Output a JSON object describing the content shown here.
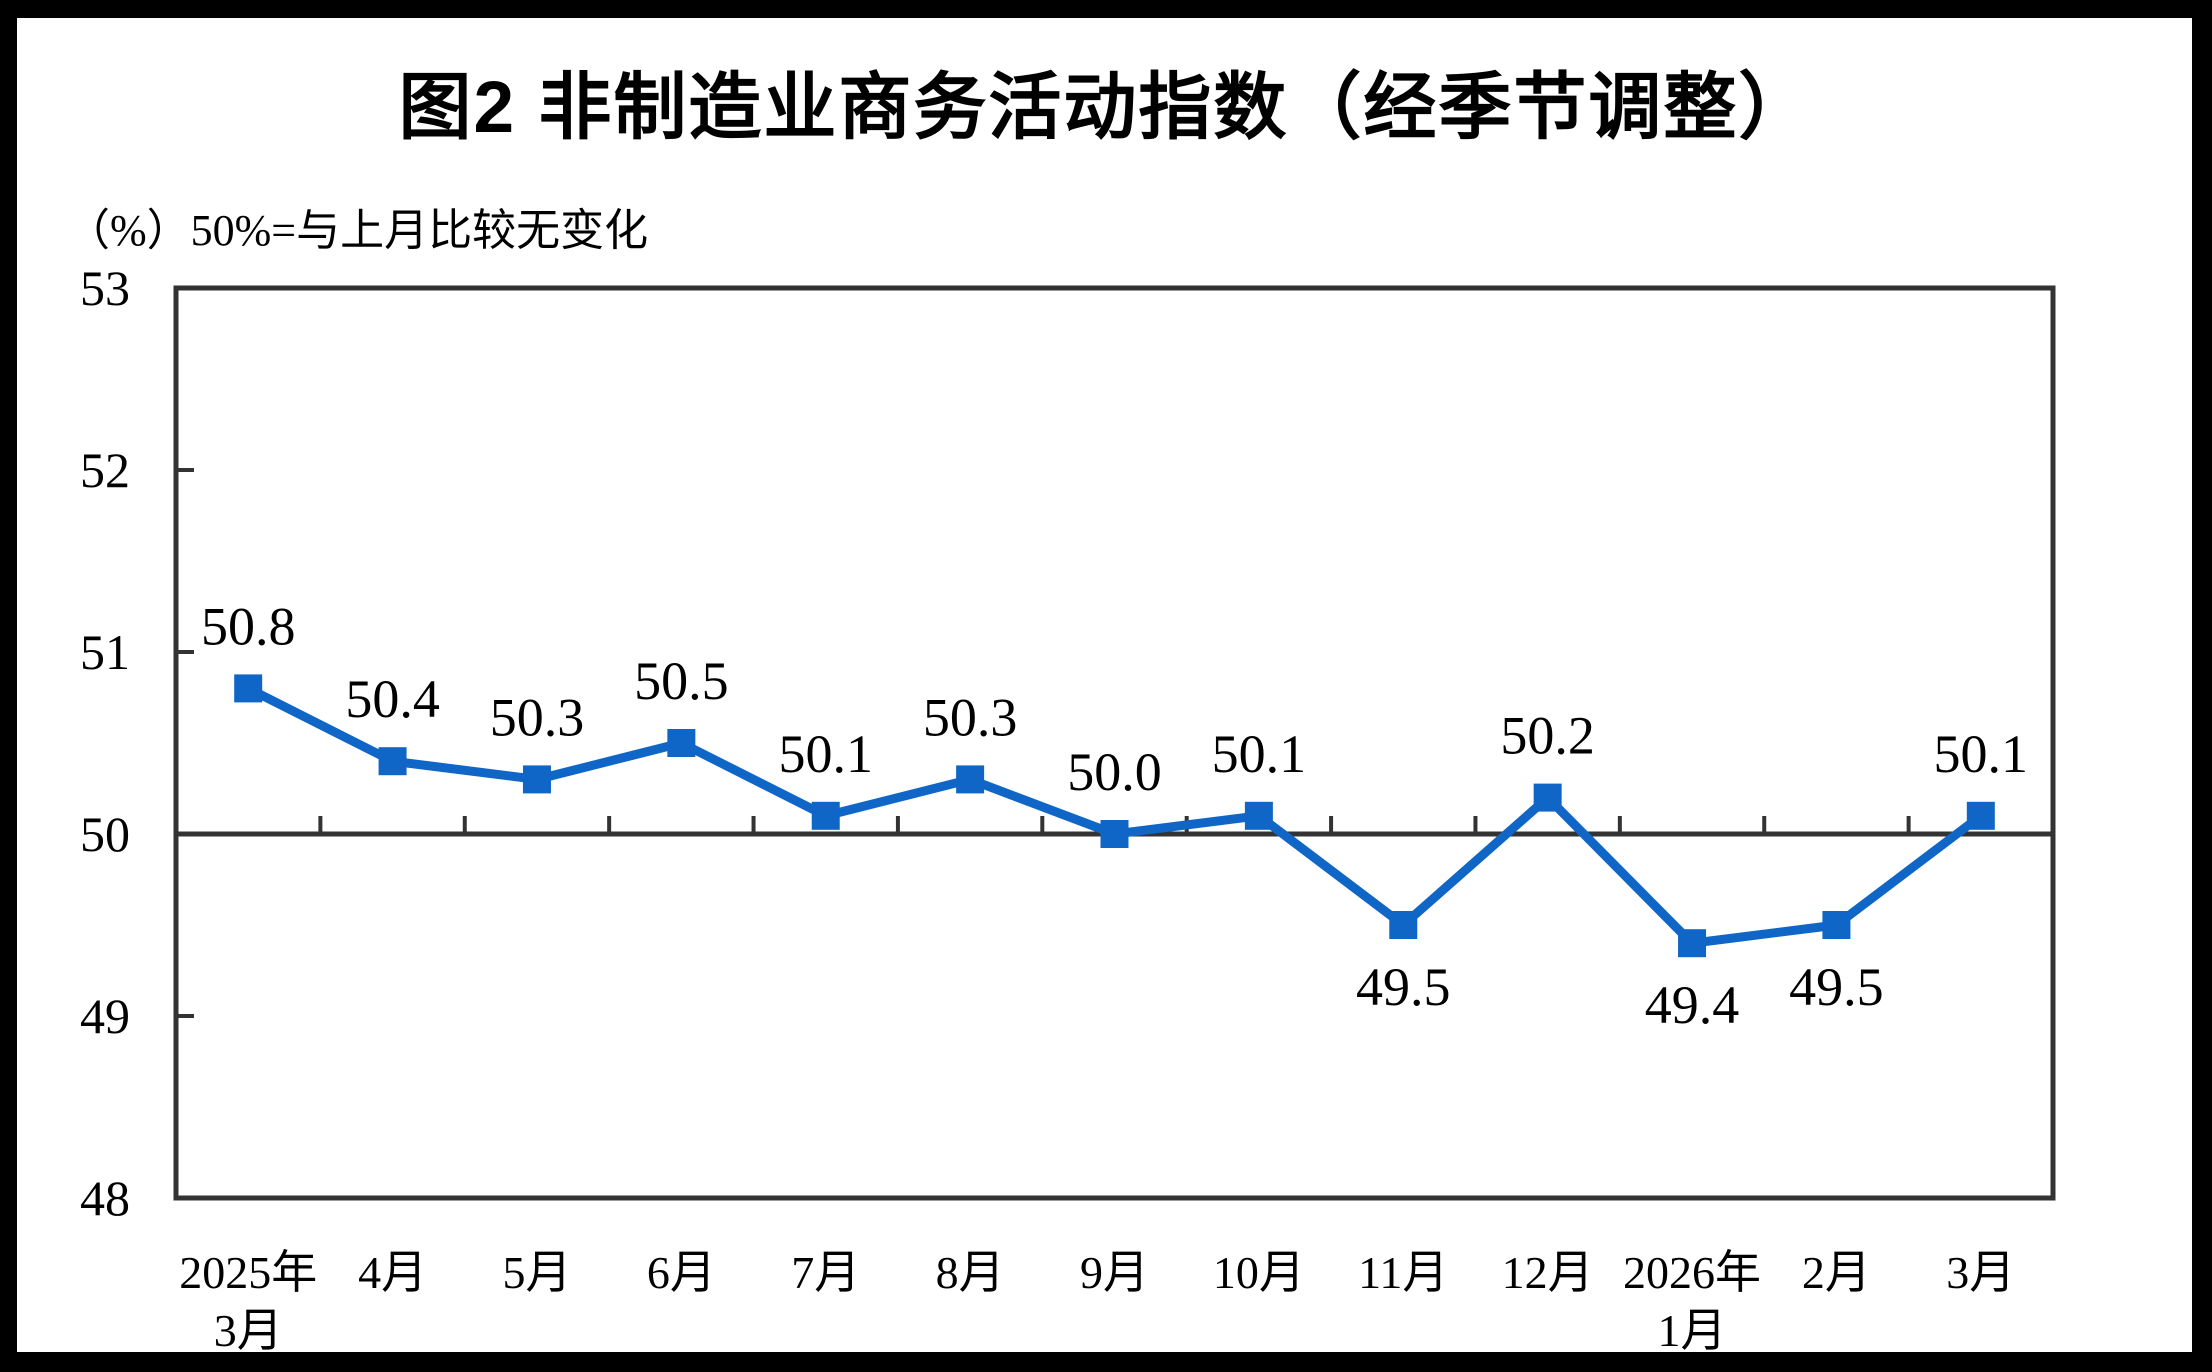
{
  "figure": {
    "title": "图2 非制造业商务活动指数（经季节调整）",
    "subtitle": "（%）50%=与上月比较无变化"
  },
  "colors": {
    "line": "#0F66C6",
    "marker": "#0F66C6",
    "axis": "#333333",
    "text": "#000000",
    "background": "#FFFFFF",
    "frame": "#000000"
  },
  "chart_data": {
    "type": "line",
    "title": "图2 非制造业商务活动指数（经季节调整）",
    "unit_note": "（%）50%=与上月比较无变化",
    "categories": [
      [
        "2025年",
        "3月"
      ],
      [
        "4月"
      ],
      [
        "5月"
      ],
      [
        "6月"
      ],
      [
        "7月"
      ],
      [
        "8月"
      ],
      [
        "9月"
      ],
      [
        "10月"
      ],
      [
        "11月"
      ],
      [
        "12月"
      ],
      [
        "2026年",
        "1月"
      ],
      [
        "2月"
      ],
      [
        "3月"
      ]
    ],
    "series": [
      {
        "name": "非制造业商务活动指数（经季节调整）",
        "values": [
          50.8,
          50.4,
          50.3,
          50.5,
          50.1,
          50.3,
          50.0,
          50.1,
          49.5,
          50.2,
          49.4,
          49.5,
          50.1
        ]
      }
    ],
    "data_labels": [
      "50.8",
      "50.4",
      "50.3",
      "50.5",
      "50.1",
      "50.3",
      "50.0",
      "50.1",
      "49.5",
      "50.2",
      "49.4",
      "49.5",
      "50.1"
    ],
    "label_position": [
      "above",
      "above",
      "above",
      "above",
      "above",
      "above",
      "above",
      "above",
      "below",
      "above",
      "below",
      "below",
      "above"
    ],
    "y_ticks": [
      48,
      49,
      50,
      51,
      52,
      53
    ],
    "ylim": [
      48,
      53
    ],
    "reference_line": 50,
    "grid": false,
    "legend": "none",
    "marker": "square"
  }
}
